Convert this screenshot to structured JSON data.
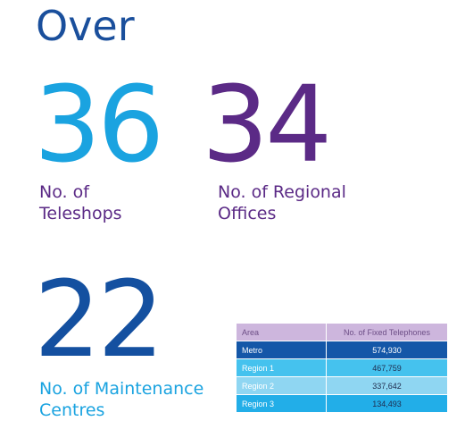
{
  "headline": "Over",
  "stats": {
    "teleshops": {
      "value": "36",
      "label_line1": "No. of",
      "label_line2": "Teleshops"
    },
    "regional_offices": {
      "value": "34",
      "label_line1": "No. of Regional",
      "label_line2": "Offices"
    },
    "maintenance_centres": {
      "value": "22",
      "label_line1": "No. of Maintenance",
      "label_line2": "Centres"
    }
  },
  "table": {
    "headers": [
      "Area",
      "No. of Fixed Telephones"
    ],
    "rows": [
      {
        "area": "Metro",
        "count": "574,930"
      },
      {
        "area": "Region 1",
        "count": "467,759"
      },
      {
        "area": "Region 2",
        "count": "337,642"
      },
      {
        "area": "Region 3",
        "count": "134,493"
      }
    ]
  },
  "colors": {
    "headline": "#1a4f9c",
    "teleshops": "#1aa3e0",
    "regional_offices": "#5b2a86",
    "maintenance_centres": "#1450a0",
    "table_header": "#cdb6dd"
  }
}
